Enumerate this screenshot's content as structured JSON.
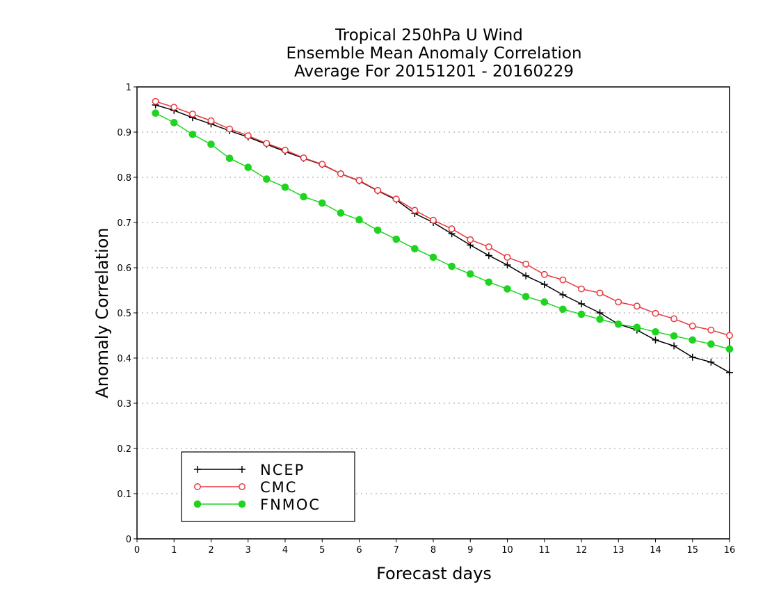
{
  "chart_data": {
    "type": "line",
    "title_lines": [
      "Tropical 250hPa U Wind",
      "Ensemble Mean Anomaly Correlation",
      "Average For 20151201 - 20160229"
    ],
    "xlabel": "Forecast days",
    "ylabel": "Anomaly Correlation",
    "xlim": [
      0,
      16
    ],
    "ylim": [
      0,
      1
    ],
    "x_ticks": [
      "0",
      "1",
      "2",
      "3",
      "4",
      "5",
      "6",
      "7",
      "8",
      "9",
      "10",
      "11",
      "12",
      "13",
      "14",
      "15",
      "16"
    ],
    "y_ticks": [
      "0",
      "0.1",
      "0.2",
      "0.3",
      "0.4",
      "0.5",
      "0.6",
      "0.7",
      "0.8",
      "0.9",
      "1"
    ],
    "grid": "horizontal dotted",
    "legend_position": "bottom-left",
    "x": [
      0.5,
      1,
      1.5,
      2,
      2.5,
      3,
      3.5,
      4,
      4.5,
      5,
      5.5,
      6,
      6.5,
      7,
      7.5,
      8,
      8.5,
      9,
      9.5,
      10,
      10.5,
      11,
      11.5,
      12,
      12.5,
      13,
      13.5,
      14,
      14.5,
      15,
      15.5,
      16
    ],
    "series": [
      {
        "name": "NCEP",
        "color": "#000000",
        "marker": "plus",
        "values": [
          0.96,
          0.948,
          0.932,
          0.918,
          0.903,
          0.889,
          0.873,
          0.857,
          0.842,
          0.828,
          0.808,
          0.792,
          0.77,
          0.75,
          0.72,
          0.7,
          0.675,
          0.65,
          0.627,
          0.606,
          0.582,
          0.563,
          0.54,
          0.52,
          0.5,
          0.475,
          0.462,
          0.44,
          0.427,
          0.402,
          0.391,
          0.368
        ]
      },
      {
        "name": "CMC",
        "color": "#e8373d",
        "marker": "open-circle",
        "values": [
          0.968,
          0.955,
          0.94,
          0.925,
          0.907,
          0.892,
          0.875,
          0.86,
          0.843,
          0.829,
          0.808,
          0.793,
          0.771,
          0.752,
          0.727,
          0.705,
          0.686,
          0.662,
          0.646,
          0.623,
          0.608,
          0.585,
          0.573,
          0.553,
          0.544,
          0.524,
          0.515,
          0.499,
          0.487,
          0.471,
          0.462,
          0.45
        ]
      },
      {
        "name": "FNMOC",
        "color": "#1ed41e",
        "marker": "filled-circle",
        "values": [
          0.942,
          0.921,
          0.895,
          0.873,
          0.842,
          0.822,
          0.796,
          0.778,
          0.757,
          0.743,
          0.721,
          0.706,
          0.683,
          0.663,
          0.642,
          0.623,
          0.603,
          0.586,
          0.568,
          0.553,
          0.536,
          0.524,
          0.508,
          0.497,
          0.486,
          0.475,
          0.468,
          0.458,
          0.449,
          0.44,
          0.431,
          0.42
        ]
      }
    ]
  }
}
